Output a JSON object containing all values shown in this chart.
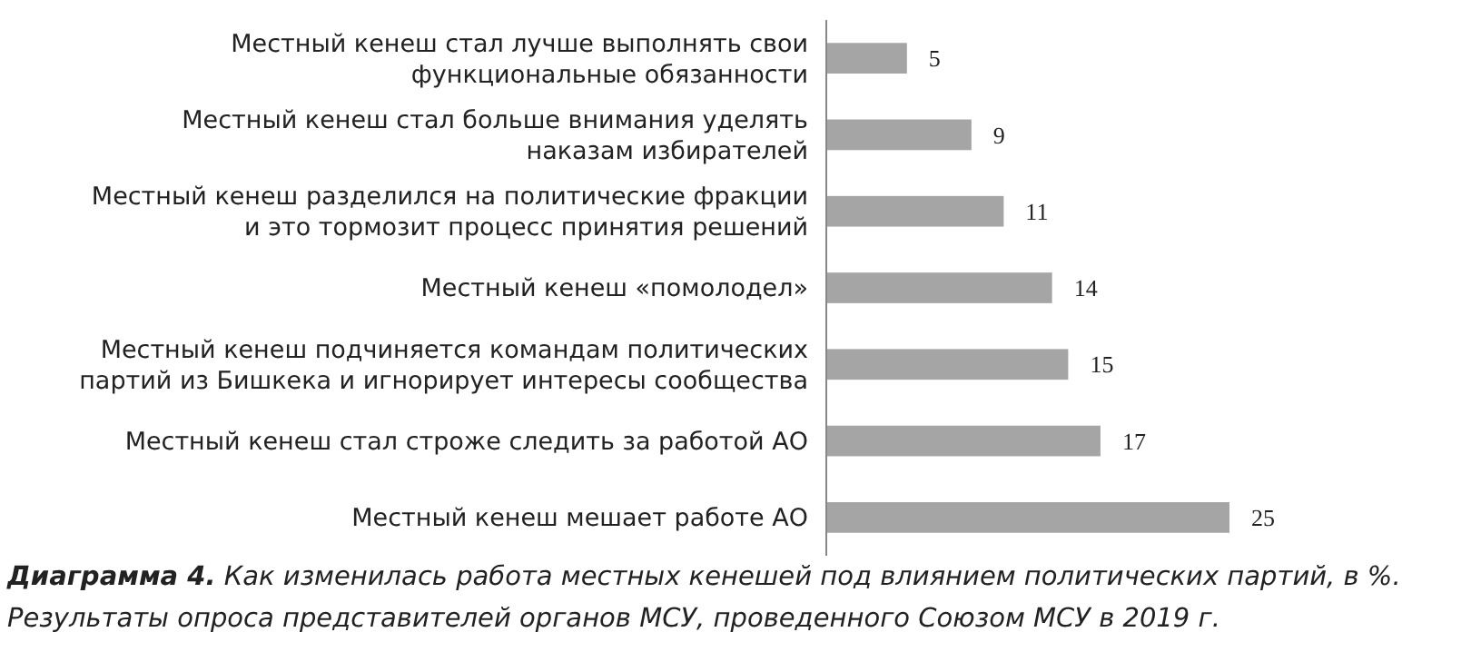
{
  "chart_data": {
    "type": "bar",
    "orientation": "horizontal",
    "title": "Диаграмма 4.",
    "subtitle": "Как изменилась работа местных кенешей под влиянием политических партий, в %.",
    "annotations": [
      "Результаты опроса представителей органов МСУ, проведенного Союзом МСУ в 2019 г."
    ],
    "categories": [
      "Местный кенеш стал лучше выполнять свои\nфункциональные обязанности",
      "Местный кенеш стал больше внимания уделять\nнаказам избирателей",
      "Местный кенеш разделился на политические фракции\nи это тормозит процесс принятия решений",
      "Местный кенеш «помолодел»",
      "Местный кенеш подчиняется командам политических\nпартий из Бишкека и игнорирует интересы сообщества",
      "Местный кенеш стал строже следить за работой АО",
      "Местный кенеш мешает работе АО"
    ],
    "values": [
      5,
      9,
      11,
      14,
      15,
      17,
      25
    ],
    "color": "#a5a5a5",
    "xlim": [
      0,
      25
    ],
    "data_labels": true
  }
}
